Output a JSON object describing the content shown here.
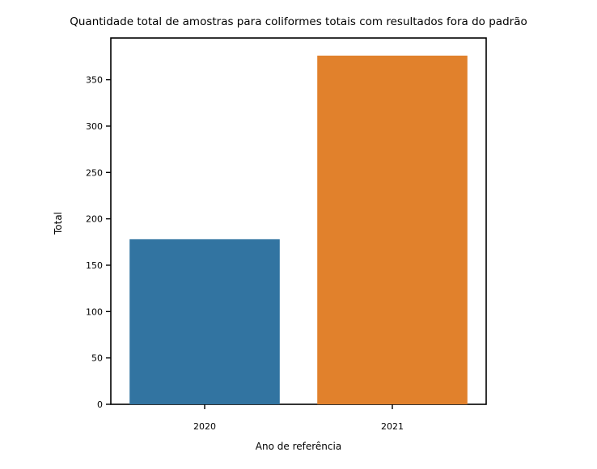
{
  "chart_data": {
    "type": "bar",
    "title": "Quantidade total de amostras para coliformes totais com resultados fora do padrão",
    "xlabel": "Ano de referência",
    "ylabel": "Total",
    "categories": [
      "2020",
      "2021"
    ],
    "values": [
      178,
      376
    ],
    "colors": [
      "#3274a1",
      "#e1812c"
    ],
    "ylim": [
      0,
      395
    ],
    "yticks": [
      0,
      50,
      100,
      150,
      200,
      250,
      300,
      350
    ],
    "grid": false,
    "legend": "none"
  }
}
